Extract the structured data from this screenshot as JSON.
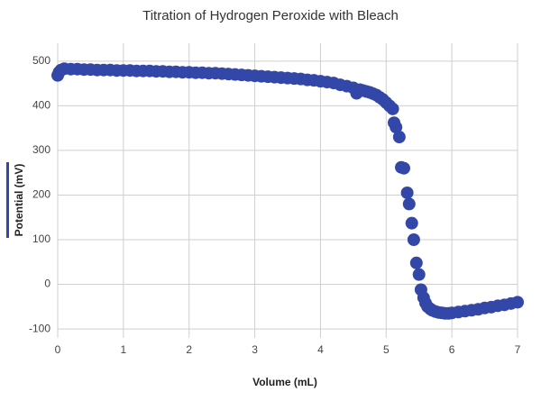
{
  "chart_data": {
    "type": "scatter",
    "title": "Titration of Hydrogen Peroxide with Bleach",
    "x_label": "Volume (mL)",
    "y_label": "Potential (mV)",
    "color": "#3347a8",
    "grid": true,
    "xlim": [
      0,
      7
    ],
    "xticks": [
      0,
      1,
      2,
      3,
      4,
      5,
      6,
      7
    ],
    "ylim": [
      -120,
      540
    ],
    "yticks": [
      -100,
      0,
      100,
      200,
      300,
      400,
      500
    ],
    "x": [
      0,
      0.02,
      0.05,
      0.1,
      0.2,
      0.3,
      0.4,
      0.5,
      0.6,
      0.7,
      0.8,
      0.9,
      1.0,
      1.1,
      1.2,
      1.3,
      1.4,
      1.5,
      1.6,
      1.7,
      1.8,
      1.9,
      2.0,
      2.1,
      2.2,
      2.3,
      2.4,
      2.5,
      2.6,
      2.7,
      2.8,
      2.9,
      3.0,
      3.1,
      3.2,
      3.3,
      3.4,
      3.5,
      3.6,
      3.7,
      3.8,
      3.9,
      4.0,
      4.1,
      4.2,
      4.3,
      4.4,
      4.5,
      4.55,
      4.6,
      4.65,
      4.7,
      4.75,
      4.8,
      4.85,
      4.9,
      4.95,
      5.0,
      5.05,
      5.1,
      5.12,
      5.15,
      5.2,
      5.23,
      5.27,
      5.32,
      5.35,
      5.39,
      5.42,
      5.46,
      5.5,
      5.53,
      5.57,
      5.6,
      5.63,
      5.67,
      5.7,
      5.75,
      5.8,
      5.85,
      5.9,
      5.95,
      6.0,
      6.1,
      6.2,
      6.3,
      6.4,
      6.5,
      6.6,
      6.7,
      6.8,
      6.9,
      7.0
    ],
    "values": [
      468,
      475,
      480,
      483,
      482,
      482,
      481,
      481,
      480,
      480,
      480,
      479,
      479,
      479,
      478,
      478,
      478,
      477,
      477,
      476,
      476,
      475,
      475,
      474,
      474,
      473,
      473,
      472,
      471,
      470,
      469,
      468,
      467,
      466,
      465,
      464,
      463,
      462,
      461,
      460,
      458,
      457,
      455,
      453,
      451,
      447,
      444,
      440,
      428,
      436,
      434,
      432,
      430,
      427,
      424,
      419,
      414,
      407,
      400,
      393,
      362,
      352,
      330,
      262,
      260,
      205,
      180,
      137,
      100,
      48,
      22,
      -12,
      -30,
      -42,
      -50,
      -55,
      -58,
      -61,
      -63,
      -64,
      -65,
      -65,
      -64,
      -62,
      -60,
      -58,
      -56,
      -53,
      -51,
      -48,
      -46,
      -43,
      -40
    ]
  }
}
